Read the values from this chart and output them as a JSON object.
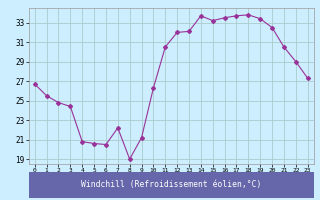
{
  "x": [
    0,
    1,
    2,
    3,
    4,
    5,
    6,
    7,
    8,
    9,
    10,
    11,
    12,
    13,
    14,
    15,
    16,
    17,
    18,
    19,
    20,
    21,
    22,
    23
  ],
  "y": [
    26.7,
    25.5,
    24.8,
    24.4,
    20.8,
    20.6,
    20.5,
    22.2,
    19.0,
    21.2,
    26.3,
    30.5,
    32.0,
    32.1,
    33.7,
    33.2,
    33.5,
    33.7,
    33.8,
    33.4,
    32.5,
    30.5,
    29.0,
    27.3
  ],
  "line_color": "#993399",
  "marker": "D",
  "marker_size": 2,
  "bg_color": "#cceeff",
  "grid_color": "#aacccc",
  "xlabel": "Windchill (Refroidissement éolien,°C)",
  "xlabel_bg": "#6666aa",
  "xlabel_color": "#ffffff",
  "ylim": [
    18.5,
    34.5
  ],
  "yticks": [
    19,
    21,
    23,
    25,
    27,
    29,
    31,
    33
  ],
  "xlim": [
    -0.5,
    23.5
  ],
  "xticks": [
    0,
    1,
    2,
    3,
    4,
    5,
    6,
    7,
    8,
    9,
    10,
    11,
    12,
    13,
    14,
    15,
    16,
    17,
    18,
    19,
    20,
    21,
    22,
    23
  ],
  "xtick_labels": [
    "0",
    "1",
    "2",
    "3",
    "4",
    "5",
    "6",
    "7",
    "8",
    "9",
    "10",
    "11",
    "12",
    "13",
    "14",
    "15",
    "16",
    "17",
    "18",
    "19",
    "20",
    "21",
    "22",
    "23"
  ]
}
